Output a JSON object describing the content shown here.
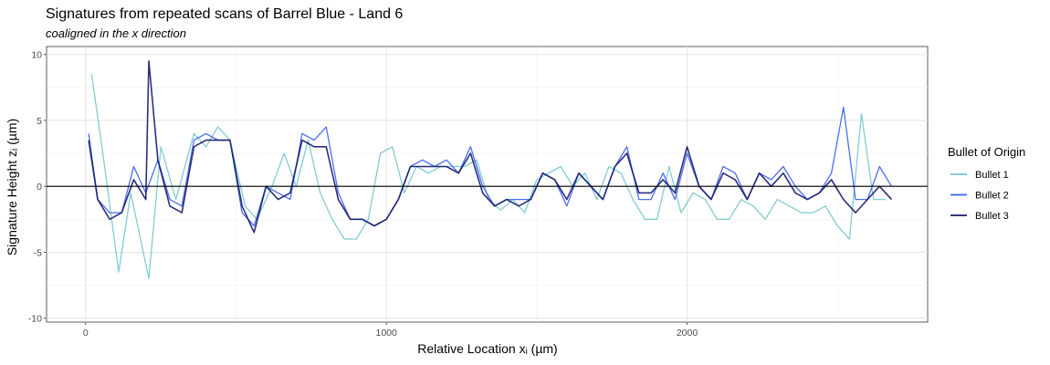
{
  "chart_data": {
    "type": "line",
    "title": "Signatures from repeated scans of Barrel Blue - Land 6",
    "subtitle": "coaligned in the x direction",
    "xlabel": "Relative Location xᵢ (µm)",
    "ylabel": "Signature Height zᵢ (µm)",
    "xlim": [
      -130,
      2800
    ],
    "ylim": [
      -10.3,
      10.6
    ],
    "x_ticks": [
      0,
      1000,
      2000
    ],
    "y_ticks": [
      -10,
      -5,
      0,
      5,
      10
    ],
    "x_tick_labels": [
      "0",
      "1000",
      "2000"
    ],
    "y_tick_labels": [
      "-10",
      "-5",
      "0",
      "5",
      "10"
    ],
    "grid": true,
    "reference_line_y": 0,
    "legend": {
      "title": "Bullet of Origin",
      "placement": "right",
      "entries": [
        "Bullet 1",
        "Bullet 2",
        "Bullet 3"
      ]
    },
    "colors": {
      "Bullet 1": "#74c6cc",
      "Bullet 2": "#3a5ef2",
      "Bullet 3": "#141a6b"
    },
    "series": [
      {
        "name": "Bullet 1",
        "x": [
          20,
          60,
          110,
          150,
          210,
          250,
          300,
          360,
          400,
          440,
          480,
          530,
          570,
          620,
          660,
          700,
          740,
          780,
          820,
          860,
          900,
          940,
          980,
          1020,
          1060,
          1100,
          1140,
          1180,
          1220,
          1260,
          1300,
          1340,
          1380,
          1420,
          1460,
          1500,
          1540,
          1580,
          1620,
          1660,
          1700,
          1740,
          1780,
          1820,
          1860,
          1900,
          1940,
          1980,
          2020,
          2060,
          2100,
          2140,
          2180,
          2220,
          2260,
          2300,
          2340,
          2380,
          2420,
          2460,
          2500,
          2540,
          2580,
          2620,
          2660
        ],
        "y": [
          8.5,
          2,
          -6.5,
          -0.5,
          -7,
          3,
          -1,
          4,
          3,
          4.5,
          3.5,
          -1.5,
          -2.5,
          0,
          2.5,
          0,
          3.5,
          -0.5,
          -2.5,
          -4,
          -4,
          -2.5,
          2.5,
          3,
          -0.5,
          1.5,
          1,
          1.5,
          1.5,
          1.5,
          2,
          -1,
          -1.8,
          -1,
          -2,
          0.5,
          1,
          1.5,
          0,
          1,
          -1,
          1.5,
          1,
          -1,
          -2.5,
          -2.5,
          1.5,
          -2,
          -0.5,
          -1,
          -2.5,
          -2.5,
          -1,
          -1.5,
          -2.5,
          -1,
          -1.5,
          -2,
          -2,
          -1.5,
          -3,
          -4,
          5.5,
          -1,
          -1
        ]
      },
      {
        "name": "Bullet 2",
        "x": [
          10,
          40,
          80,
          120,
          160,
          200,
          240,
          280,
          320,
          360,
          400,
          440,
          480,
          520,
          560,
          600,
          640,
          680,
          720,
          760,
          800,
          840,
          880,
          920,
          960,
          1000,
          1040,
          1080,
          1120,
          1160,
          1200,
          1240,
          1280,
          1320,
          1360,
          1400,
          1440,
          1480,
          1520,
          1560,
          1600,
          1640,
          1680,
          1720,
          1760,
          1800,
          1840,
          1880,
          1920,
          1960,
          2000,
          2040,
          2080,
          2120,
          2160,
          2200,
          2240,
          2280,
          2320,
          2360,
          2400,
          2440,
          2480,
          2520,
          2560,
          2600,
          2640,
          2680
        ],
        "y": [
          4,
          -1,
          -2,
          -2,
          1.5,
          -0.5,
          2,
          -1,
          -1.5,
          3.5,
          4,
          3.5,
          3.5,
          -2,
          -3,
          0,
          -0.5,
          -1,
          4,
          3.5,
          4.5,
          -0.5,
          -2.5,
          -2.5,
          -3,
          -2.5,
          -1,
          1.5,
          2,
          1.5,
          2,
          1,
          3,
          0,
          -1.5,
          -1,
          -1,
          -1,
          1,
          0.5,
          -1.5,
          1,
          0,
          -1,
          1.5,
          3,
          -1,
          -1,
          1,
          -1,
          2.5,
          0,
          -1,
          1.5,
          1,
          -1,
          1,
          0.5,
          1.5,
          0,
          -1,
          -0.5,
          1,
          6,
          -1,
          -1,
          1.5,
          0
        ]
      },
      {
        "name": "Bullet 3",
        "x": [
          10,
          40,
          80,
          120,
          160,
          200,
          210,
          240,
          280,
          320,
          360,
          400,
          440,
          480,
          520,
          560,
          600,
          640,
          680,
          720,
          760,
          800,
          840,
          880,
          920,
          960,
          1000,
          1040,
          1080,
          1120,
          1160,
          1200,
          1240,
          1280,
          1320,
          1360,
          1400,
          1440,
          1480,
          1520,
          1560,
          1600,
          1640,
          1680,
          1720,
          1760,
          1800,
          1840,
          1880,
          1920,
          1960,
          2000,
          2040,
          2080,
          2120,
          2160,
          2200,
          2240,
          2280,
          2320,
          2360,
          2400,
          2440,
          2480,
          2520,
          2560,
          2600,
          2640,
          2680
        ],
        "y": [
          3.5,
          -1,
          -2.5,
          -2,
          0.5,
          -1,
          9.5,
          2,
          -1.5,
          -2,
          3,
          3.5,
          3.5,
          3.5,
          -1.5,
          -3.5,
          0,
          -1,
          -0.5,
          3.5,
          3,
          3,
          -1,
          -2.5,
          -2.5,
          -3,
          -2.5,
          -1,
          1.5,
          1.5,
          1.5,
          1.5,
          1,
          2.5,
          -0.5,
          -1.5,
          -1,
          -1.5,
          -1,
          1,
          0.5,
          -1,
          1,
          0,
          -1,
          1.5,
          2.5,
          -0.5,
          -0.5,
          0.5,
          -0.5,
          3,
          0,
          -1,
          1,
          0.5,
          -1,
          1,
          0,
          1,
          -0.5,
          -1,
          -0.5,
          0.5,
          -1,
          -2,
          -1,
          0,
          -1
        ]
      }
    ]
  }
}
